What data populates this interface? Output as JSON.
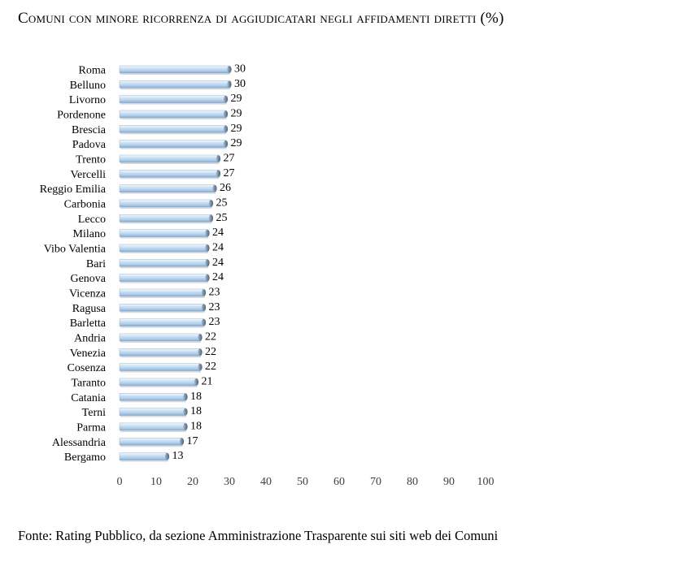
{
  "header": {
    "title": "Comuni con minore ricorrenza di aggiudicatari negli affidamenti diretti (%)"
  },
  "footer": {
    "source": "Fonte: Rating Pubblico, da sezione Amministrazione Trasparente sui siti web dei Comuni"
  },
  "colors": {
    "bar_light": "#dbe9f6",
    "bar_mid": "#a9c9e6",
    "bar_dark": "#7fa6cc",
    "bar_edge": "#5f6f80"
  },
  "chart_data": {
    "type": "bar",
    "orientation": "horizontal",
    "title": "Comuni con minore ricorrenza di aggiudicatari negli affidamenti diretti (%)",
    "categories": [
      "Roma",
      "Belluno",
      "Livorno",
      "Pordenone",
      "Brescia",
      "Padova",
      "Trento",
      "Vercelli",
      "Reggio Emilia",
      "Carbonia",
      "Lecco",
      "Milano",
      "Vibo Valentia",
      "Bari",
      "Genova",
      "Vicenza",
      "Ragusa",
      "Barletta",
      "Andria",
      "Venezia",
      "Cosenza",
      "Taranto",
      "Catania",
      "Terni",
      "Parma",
      "Alessandria",
      "Bergamo"
    ],
    "values": [
      30,
      30,
      29,
      29,
      29,
      29,
      27,
      27,
      26,
      25,
      25,
      24,
      24,
      24,
      24,
      23,
      23,
      23,
      22,
      22,
      22,
      21,
      18,
      18,
      18,
      17,
      13
    ],
    "xlim": [
      0,
      100
    ],
    "xticks": [
      0,
      10,
      20,
      30,
      40,
      50,
      60,
      70,
      80,
      90,
      100
    ],
    "grid": false,
    "legend": "none",
    "data_labels": true
  }
}
